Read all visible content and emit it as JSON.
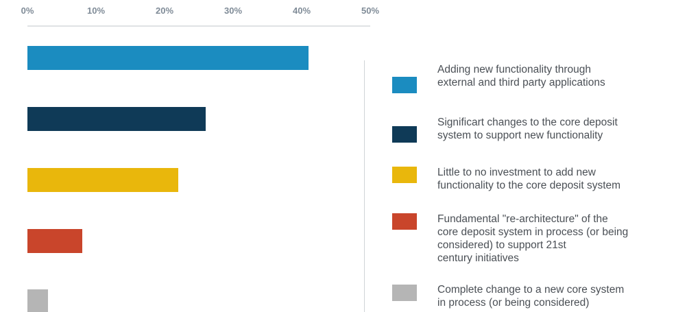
{
  "chart_data": {
    "type": "bar",
    "orientation": "horizontal",
    "categories": [
      "Adding new functionality through\nexternal and third party applications",
      "Significart changes to the core deposit\nsystem to support new functionality",
      "Little to no investment to add new\nfunctionality to the core deposit system",
      "Fundamental \"re-architecture\" of the\ncore deposit system in process (or being\nconsidered) to support 21st\ncentury initiatives",
      "Complete change to a new core system\nin process (or being considered)"
    ],
    "values": [
      41,
      26,
      22,
      8,
      3
    ],
    "colors": [
      "#1b8cc0",
      "#0f3a57",
      "#e9b70c",
      "#c9452b",
      "#b5b5b5"
    ],
    "x_ticks": [
      "0%",
      "10%",
      "20%",
      "30%",
      "40%",
      "50%"
    ],
    "xlim": [
      0,
      50
    ],
    "axis_position": "top",
    "legend_position": "right",
    "grid": false
  }
}
